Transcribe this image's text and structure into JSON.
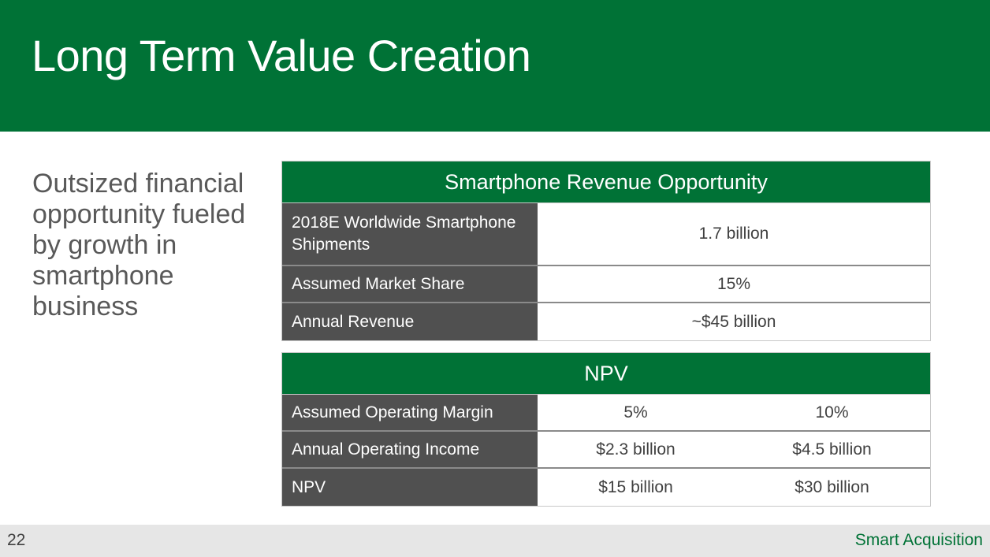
{
  "slide": {
    "title": "Long Term Value Creation",
    "subtitle": "Outsized financial opportunity fueled by growth in smartphone business",
    "page_number": "22",
    "footer_brand": "Smart Acquisition",
    "colors": {
      "accent": "#007236",
      "label_bg": "#505050",
      "footer_bg": "#e6e6e6"
    }
  },
  "revenue_table": {
    "header": "Smartphone Revenue Opportunity",
    "rows": [
      {
        "label": "2018E Worldwide Smartphone Shipments",
        "value": "1.7 billion"
      },
      {
        "label": "Assumed Market Share",
        "value": "15%"
      },
      {
        "label": "Annual Revenue",
        "value": "~$45 billion"
      }
    ]
  },
  "npv_table": {
    "header": "NPV",
    "rows": [
      {
        "label": "Assumed Operating Margin",
        "values": [
          "5%",
          "10%"
        ]
      },
      {
        "label": "Annual Operating Income",
        "values": [
          "$2.3 billion",
          "$4.5 billion"
        ]
      },
      {
        "label": "NPV",
        "values": [
          "$15 billion",
          "$30 billion"
        ]
      }
    ]
  }
}
